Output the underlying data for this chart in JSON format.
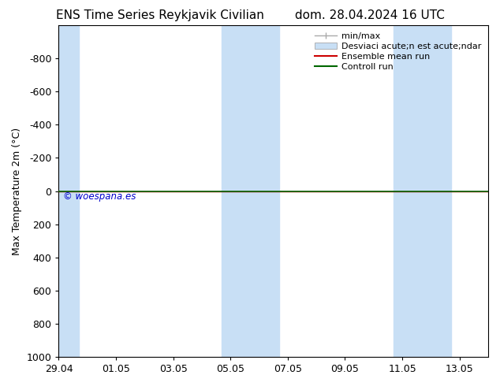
{
  "title_left": "ENS Time Series Reykjavik Civilian",
  "title_right": "dom. 28.04.2024 16 UTC",
  "ylabel": "Max Temperature 2m (°C)",
  "ylim_top": -1000,
  "ylim_bottom": 1000,
  "yticks": [
    -800,
    -600,
    -400,
    -200,
    0,
    200,
    400,
    600,
    800,
    1000
  ],
  "xtick_labels": [
    "29.04",
    "01.05",
    "03.05",
    "05.05",
    "07.05",
    "09.05",
    "11.05",
    "13.05"
  ],
  "xtick_positions": [
    0,
    2,
    4,
    6,
    8,
    10,
    12,
    14
  ],
  "xlim": [
    0,
    15
  ],
  "shaded_bands": [
    {
      "start": -0.3,
      "end": 0.7
    },
    {
      "start": 5.7,
      "end": 7.7
    },
    {
      "start": 11.7,
      "end": 13.7
    }
  ],
  "control_run_y": 0,
  "ensemble_mean_y": 0,
  "watermark": "© woespana.es",
  "watermark_color": "#0000cc",
  "legend_labels": [
    "min/max",
    "Desviaci acute;n est acute;ndar",
    "Ensemble mean run",
    "Controll run"
  ],
  "legend_colors_line": [
    "#aaaaaa",
    "#bbccdd",
    "#cc0000",
    "#006600"
  ],
  "shaded_color": "#c8dff5",
  "bg_color": "#ffffff",
  "title_fontsize": 11,
  "tick_fontsize": 9,
  "ylabel_fontsize": 9,
  "legend_fontsize": 8
}
